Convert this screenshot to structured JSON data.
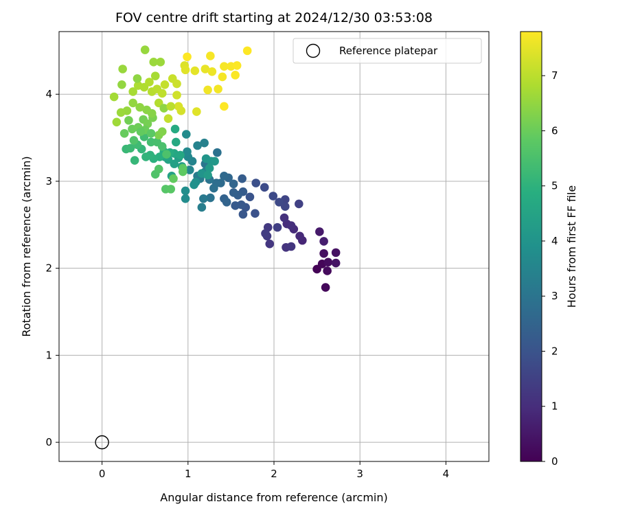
{
  "chart_data": {
    "type": "scatter",
    "title": "FOV centre drift starting at 2024/12/30 03:53:08",
    "xlabel": "Angular distance from reference (arcmin)",
    "ylabel": "Rotation from reference (arcmin)",
    "xlim": [
      -0.5,
      4.5
    ],
    "ylim": [
      -0.22,
      4.72
    ],
    "xticks": [
      0,
      1,
      2,
      3,
      4
    ],
    "yticks": [
      0,
      1,
      2,
      3,
      4
    ],
    "grid": true,
    "legend": {
      "placement": "top-right",
      "entries": [
        {
          "label": "Reference platepar",
          "marker": "open-circle"
        }
      ]
    },
    "reference_point": {
      "x": 0,
      "y": 0
    },
    "colorbar": {
      "label": "Hours from first FF file",
      "colormap": "viridis",
      "range": [
        0,
        7.8
      ],
      "ticks": [
        0,
        1,
        2,
        3,
        4,
        5,
        6,
        7
      ]
    },
    "series": [
      {
        "points": [
          [
            2.5,
            1.99,
            0.05
          ],
          [
            2.56,
            2.05,
            0.1
          ],
          [
            2.6,
            1.78,
            0.15
          ],
          [
            2.62,
            1.97,
            0.2
          ],
          [
            2.63,
            2.07,
            0.25
          ],
          [
            2.58,
            2.17,
            0.3
          ],
          [
            2.72,
            2.18,
            0.35
          ],
          [
            2.72,
            2.06,
            0.4
          ],
          [
            2.53,
            2.42,
            0.55
          ],
          [
            2.58,
            2.31,
            0.65
          ],
          [
            2.33,
            2.32,
            0.85
          ],
          [
            2.3,
            2.37,
            0.9
          ],
          [
            2.23,
            2.45,
            0.95
          ],
          [
            2.15,
            2.51,
            1.0
          ],
          [
            2.2,
            2.49,
            1.05
          ],
          [
            2.12,
            2.58,
            1.1
          ],
          [
            2.14,
            2.24,
            1.15
          ],
          [
            2.2,
            2.25,
            1.2
          ],
          [
            1.95,
            2.28,
            1.25
          ],
          [
            1.93,
            2.47,
            1.3
          ],
          [
            1.92,
            2.37,
            1.35
          ],
          [
            1.9,
            2.4,
            1.4
          ],
          [
            2.04,
            2.47,
            1.45
          ],
          [
            2.29,
            2.74,
            1.5
          ],
          [
            2.13,
            2.79,
            1.6
          ],
          [
            2.13,
            2.71,
            1.65
          ],
          [
            2.06,
            2.76,
            1.7
          ],
          [
            1.99,
            2.83,
            1.75
          ],
          [
            1.89,
            2.93,
            1.8
          ],
          [
            1.79,
            2.98,
            1.9
          ],
          [
            1.78,
            2.63,
            1.95
          ],
          [
            1.72,
            2.82,
            2.0
          ],
          [
            1.67,
            2.7,
            2.05
          ],
          [
            1.64,
            2.62,
            2.1
          ],
          [
            1.62,
            2.73,
            2.15
          ],
          [
            1.55,
            2.72,
            2.2
          ],
          [
            1.64,
            2.88,
            2.25
          ],
          [
            1.63,
            3.03,
            2.3
          ],
          [
            1.58,
            2.84,
            2.35
          ],
          [
            1.53,
            2.87,
            2.4
          ],
          [
            1.42,
            2.8,
            2.45
          ],
          [
            1.45,
            2.76,
            2.5
          ],
          [
            1.53,
            2.97,
            2.55
          ],
          [
            1.47,
            3.04,
            2.6
          ],
          [
            1.42,
            3.06,
            2.65
          ],
          [
            1.38,
            2.98,
            2.7
          ],
          [
            1.33,
            2.98,
            2.8
          ],
          [
            1.3,
            2.92,
            2.85
          ],
          [
            1.34,
            3.33,
            2.9
          ],
          [
            1.26,
            2.81,
            2.95
          ],
          [
            1.25,
            3.02,
            3.0
          ],
          [
            1.2,
            3.2,
            3.05
          ],
          [
            1.2,
            3.11,
            3.1
          ],
          [
            1.18,
            2.8,
            3.15
          ],
          [
            1.14,
            3.03,
            3.2
          ],
          [
            1.11,
            3.06,
            3.25
          ],
          [
            1.16,
            2.7,
            3.3
          ],
          [
            1.22,
            3.12,
            3.35
          ],
          [
            1.19,
            3.44,
            3.4
          ],
          [
            1.11,
            3.41,
            3.45
          ],
          [
            1.05,
            3.23,
            3.5
          ],
          [
            1.02,
            3.13,
            3.55
          ],
          [
            1.0,
            3.28,
            3.6
          ],
          [
            0.99,
            3.34,
            3.65
          ],
          [
            0.98,
            3.54,
            3.7
          ],
          [
            0.97,
            2.8,
            3.75
          ],
          [
            0.97,
            2.89,
            3.8
          ],
          [
            1.09,
            2.99,
            3.85
          ],
          [
            1.07,
            2.96,
            3.9
          ],
          [
            1.16,
            3.09,
            4.0
          ],
          [
            1.21,
            3.26,
            4.05
          ],
          [
            1.27,
            3.23,
            4.1
          ],
          [
            1.31,
            3.23,
            4.15
          ],
          [
            1.25,
            3.15,
            4.2
          ],
          [
            1.23,
            3.07,
            4.25
          ],
          [
            0.93,
            3.17,
            4.3
          ],
          [
            0.89,
            3.27,
            4.35
          ],
          [
            0.84,
            3.2,
            4.4
          ],
          [
            0.81,
            3.06,
            4.45
          ],
          [
            0.77,
            3.25,
            4.5
          ],
          [
            0.73,
            3.28,
            4.55
          ],
          [
            0.84,
            3.32,
            4.6
          ],
          [
            0.91,
            3.3,
            4.65
          ],
          [
            0.86,
            3.45,
            4.7
          ],
          [
            0.85,
            3.6,
            4.75
          ],
          [
            0.79,
            3.33,
            4.8
          ],
          [
            0.72,
            3.34,
            4.85
          ],
          [
            0.67,
            3.28,
            4.9
          ],
          [
            0.6,
            3.26,
            4.95
          ],
          [
            0.56,
            3.3,
            5.0
          ],
          [
            0.51,
            3.28,
            5.05
          ],
          [
            0.46,
            3.37,
            5.1
          ],
          [
            0.38,
            3.24,
            5.15
          ],
          [
            0.28,
            3.37,
            5.2
          ],
          [
            0.33,
            3.38,
            5.25
          ],
          [
            0.41,
            3.42,
            5.3
          ],
          [
            0.49,
            3.51,
            5.35
          ],
          [
            0.57,
            3.45,
            5.4
          ],
          [
            0.64,
            3.45,
            5.45
          ],
          [
            0.7,
            3.4,
            5.5
          ],
          [
            0.75,
            3.31,
            5.55
          ],
          [
            0.62,
            3.08,
            5.6
          ],
          [
            0.66,
            3.14,
            5.65
          ],
          [
            0.74,
            2.91,
            5.7
          ],
          [
            0.8,
            2.91,
            5.75
          ],
          [
            0.94,
            3.15,
            5.8
          ],
          [
            0.94,
            3.11,
            5.85
          ],
          [
            0.83,
            3.03,
            5.9
          ],
          [
            0.26,
            3.55,
            5.95
          ],
          [
            0.35,
            3.6,
            6.0
          ],
          [
            0.42,
            3.62,
            6.05
          ],
          [
            0.48,
            3.71,
            6.1
          ],
          [
            0.53,
            3.66,
            6.15
          ],
          [
            0.59,
            3.73,
            6.2
          ],
          [
            0.66,
            3.53,
            6.25
          ],
          [
            0.7,
            3.57,
            6.3
          ],
          [
            0.58,
            3.78,
            6.35
          ],
          [
            0.52,
            3.82,
            6.4
          ],
          [
            0.44,
            3.85,
            6.45
          ],
          [
            0.36,
            3.9,
            6.5
          ],
          [
            0.29,
            3.81,
            6.55
          ],
          [
            0.22,
            3.79,
            6.6
          ],
          [
            0.17,
            3.68,
            6.65
          ],
          [
            0.14,
            3.97,
            6.7
          ],
          [
            0.36,
            4.03,
            6.75
          ],
          [
            0.42,
            4.1,
            6.8
          ],
          [
            0.49,
            4.08,
            6.85
          ],
          [
            0.55,
            4.14,
            6.9
          ],
          [
            0.58,
            4.03,
            6.95
          ],
          [
            0.64,
            4.06,
            7.0
          ],
          [
            0.7,
            4.01,
            7.05
          ],
          [
            0.73,
            4.11,
            7.1
          ],
          [
            0.82,
            4.18,
            7.15
          ],
          [
            0.87,
            4.12,
            7.2
          ],
          [
            0.87,
            3.99,
            7.25
          ],
          [
            0.92,
            3.81,
            7.3
          ],
          [
            0.89,
            3.86,
            7.35
          ],
          [
            0.96,
            4.33,
            7.4
          ],
          [
            0.97,
            4.28,
            7.45
          ],
          [
            1.08,
            4.27,
            7.5
          ],
          [
            1.2,
            4.29,
            7.55
          ],
          [
            1.28,
            4.26,
            7.6
          ],
          [
            1.23,
            4.05,
            7.65
          ],
          [
            1.35,
            4.06,
            7.68
          ],
          [
            1.4,
            4.2,
            7.7
          ],
          [
            1.42,
            4.32,
            7.72
          ],
          [
            1.5,
            4.32,
            7.74
          ],
          [
            1.55,
            4.22,
            7.76
          ],
          [
            1.57,
            4.33,
            7.78
          ],
          [
            1.69,
            4.5,
            7.8
          ],
          [
            1.42,
            3.86,
            7.8
          ],
          [
            0.99,
            4.43,
            7.8
          ],
          [
            1.26,
            4.44,
            7.72
          ],
          [
            1.1,
            3.8,
            7.45
          ],
          [
            0.5,
            4.51,
            6.55
          ],
          [
            0.6,
            4.37,
            6.6
          ],
          [
            0.68,
            4.37,
            6.62
          ],
          [
            0.24,
            4.29,
            6.58
          ],
          [
            0.23,
            4.11,
            6.5
          ],
          [
            0.41,
            4.18,
            6.45
          ],
          [
            0.62,
            4.21,
            6.75
          ],
          [
            0.77,
            3.72,
            7.1
          ],
          [
            0.66,
            3.9,
            6.9
          ],
          [
            0.5,
            3.59,
            6.0
          ],
          [
            0.31,
            3.7,
            6.1
          ],
          [
            0.37,
            3.47,
            5.6
          ],
          [
            0.45,
            3.57,
            5.9
          ],
          [
            0.72,
            3.84,
            6.45
          ],
          [
            0.8,
            3.86,
            7.0
          ],
          [
            0.57,
            3.55,
            5.8
          ]
        ]
      }
    ]
  }
}
